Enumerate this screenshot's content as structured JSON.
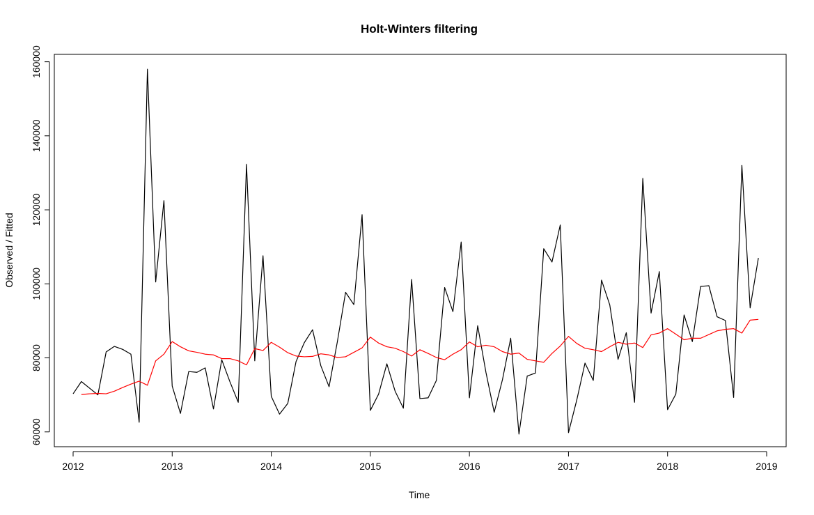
{
  "chart_data": {
    "type": "line",
    "title": "Holt-Winters filtering",
    "xlabel": "Time",
    "ylabel": "Observed / Fitted",
    "xlim": [
      2012,
      2019
    ],
    "ylim": [
      56000,
      162000
    ],
    "x_ticks": [
      2012,
      2013,
      2014,
      2015,
      2016,
      2017,
      2018,
      2019
    ],
    "x_tick_labels": [
      "2012",
      "2013",
      "2014",
      "2015",
      "2016",
      "2017",
      "2018",
      "2019"
    ],
    "y_ticks": [
      60000,
      80000,
      100000,
      120000,
      140000,
      160000
    ],
    "y_tick_labels": [
      "60000",
      "80000",
      "100000",
      "120000",
      "140000",
      "160000"
    ],
    "grid": false,
    "frequency": 12,
    "series": [
      {
        "color": "#000000",
        "start": 2012,
        "values": [
          70300,
          73600,
          71800,
          70000,
          81600,
          83100,
          82300,
          81000,
          62600,
          158000,
          100500,
          122500,
          72400,
          65000,
          76300,
          76100,
          77300,
          66200,
          79500,
          73500,
          68000,
          132300,
          79200,
          107600,
          69600,
          64800,
          67700,
          79000,
          84100,
          87600,
          77900,
          72200,
          84300,
          97700,
          94400,
          118700,
          65800,
          70200,
          78400,
          71000,
          66400,
          101200,
          69000,
          69200,
          73900,
          99000,
          92500,
          111300,
          69200,
          88700,
          76100,
          65300,
          74100,
          85300,
          59400,
          75100,
          75900,
          109500,
          105900,
          115900,
          59800,
          68600,
          78600,
          73900,
          101000,
          94300,
          79600,
          86800,
          68000,
          128500,
          92100,
          103300,
          66000,
          70200,
          91600,
          84400,
          99300,
          99500,
          91100,
          90100,
          69300,
          132000,
          93500,
          107000
        ]
      },
      {
        "color": "#ff0000",
        "start": 2012.0833,
        "values": [
          70100,
          70300,
          70400,
          70300,
          71000,
          72000,
          72900,
          73700,
          72600,
          79200,
          81000,
          84400,
          83000,
          81900,
          81500,
          81000,
          80800,
          79800,
          79800,
          79200,
          78100,
          82500,
          82000,
          84200,
          82900,
          81400,
          80500,
          80300,
          80400,
          81100,
          80800,
          80100,
          80300,
          81500,
          82700,
          85600,
          84000,
          83000,
          82600,
          81700,
          80500,
          82200,
          81200,
          80100,
          79500,
          81000,
          82200,
          84300,
          83000,
          83400,
          83000,
          81700,
          81000,
          81300,
          79600,
          79200,
          78800,
          81200,
          83200,
          85800,
          83900,
          82600,
          82200,
          81700,
          83000,
          84200,
          83700,
          84000,
          82800,
          86200,
          86700,
          87900,
          86400,
          84900,
          85300,
          85300,
          86300,
          87300,
          87700,
          87900,
          86700,
          90200,
          90400
        ]
      }
    ]
  }
}
